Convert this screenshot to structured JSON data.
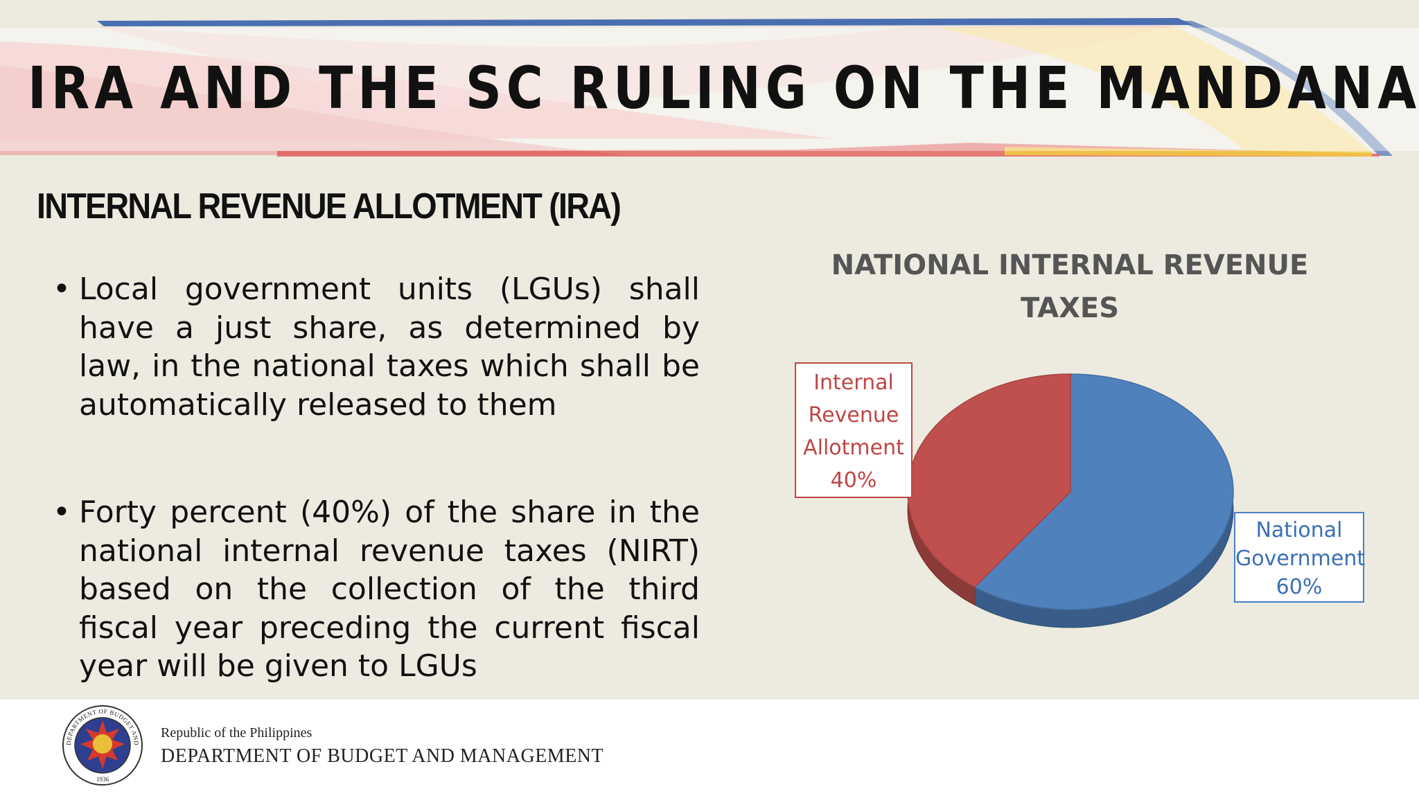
{
  "header": {
    "title": "IRA AND THE SC RULING ON THE MANDANAS CASE"
  },
  "section": {
    "heading": "INTERNAL REVENUE ALLOTMENT (IRA)"
  },
  "bullets": [
    {
      "text": "Local government units (LGUs) shall have a just share, as determined by law, in the national taxes which shall be automatically released to them"
    },
    {
      "text": "Forty percent (40%) of the share in the national internal revenue taxes (NIRT) based on the collection of the third fiscal year preceding the current fiscal year will be given to LGUs"
    }
  ],
  "chart_data": {
    "type": "pie",
    "title_lines": [
      "NATIONAL INTERNAL REVENUE",
      "TAXES"
    ],
    "slices": [
      {
        "label_lines": [
          "Internal",
          "Revenue",
          "Allotment"
        ],
        "percent_text": "40%",
        "value": 40,
        "color": "#c0504d"
      },
      {
        "label_lines": [
          "National",
          "Government"
        ],
        "percent_text": "60%",
        "value": 60,
        "color": "#4f81bd"
      }
    ],
    "style": "3d"
  },
  "footer": {
    "republic": "Republic of the Philippines",
    "department": "DEPARTMENT OF BUDGET AND MANAGEMENT",
    "seal": {
      "top_text": "DEPARTMENT OF BUDGET AND MANAGEMENT",
      "year": "1936"
    }
  },
  "colors": {
    "background": "#edeae0",
    "ira_red": "#c0504d",
    "ng_blue": "#4f81bd"
  }
}
